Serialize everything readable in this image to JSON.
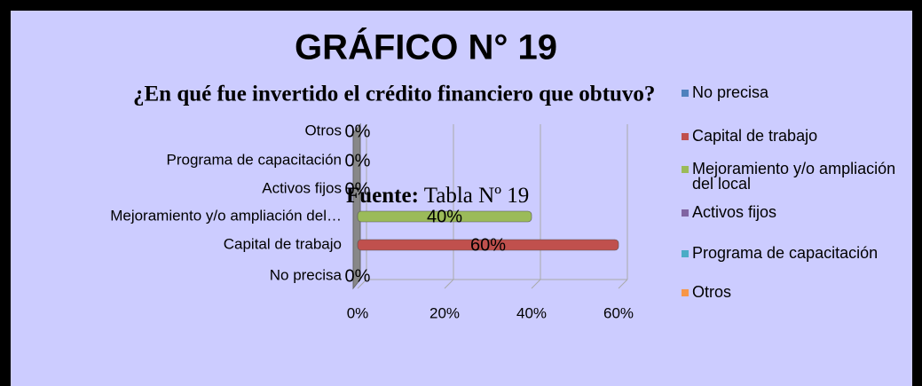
{
  "chart_data": {
    "type": "bar",
    "orientation": "horizontal",
    "title": "GRÁFICO N° 19",
    "subtitle": "¿En qué fue invertido el crédito financiero que obtuvo?",
    "source_label": "Fuente:",
    "source": "Tabla Nº 19",
    "categories": [
      "No precisa",
      "Capital de trabajo",
      "Mejoramiento y/o ampliación del…",
      "Activos fijos",
      "Programa de capacitación",
      "Otros"
    ],
    "values": [
      0,
      60,
      40,
      0,
      0,
      0
    ],
    "value_labels": [
      "0%",
      "60%",
      "40%",
      "0%",
      "0%",
      "0%"
    ],
    "colors": [
      "#4f81bd",
      "#c0504d",
      "#9bbb59",
      "#8064a2",
      "#4bacc6",
      "#f79646"
    ],
    "legend": [
      "No precisa",
      "Capital de trabajo",
      "Mejoramiento y/o ampliación del local",
      "Activos fijos",
      "Programa de capacitación",
      "Otros"
    ],
    "xlim": [
      0,
      60
    ],
    "xticks": [
      {
        "value": 0,
        "label": "0%"
      },
      {
        "value": 20,
        "label": "20%"
      },
      {
        "value": 40,
        "label": "40%"
      },
      {
        "value": 60,
        "label": "60%"
      }
    ],
    "grid": true
  }
}
